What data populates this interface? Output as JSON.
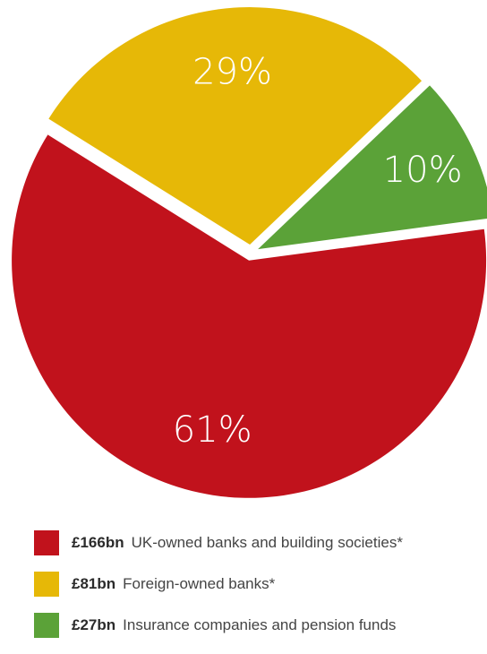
{
  "chart_data": {
    "type": "pie",
    "slices": [
      {
        "amount": "£166bn",
        "label": "UK-owned banks and building societies*",
        "value": 61,
        "value_label": "61%",
        "color": "#c1121c"
      },
      {
        "amount": "£81bn",
        "label": "Foreign-owned banks*",
        "value": 29,
        "value_label": "29%",
        "color": "#e6b807"
      },
      {
        "amount": "£27bn",
        "label": "Insurance companies and pension funds",
        "value": 10,
        "value_label": "10%",
        "color": "#5ba238"
      }
    ],
    "legend_position": "bottom"
  }
}
